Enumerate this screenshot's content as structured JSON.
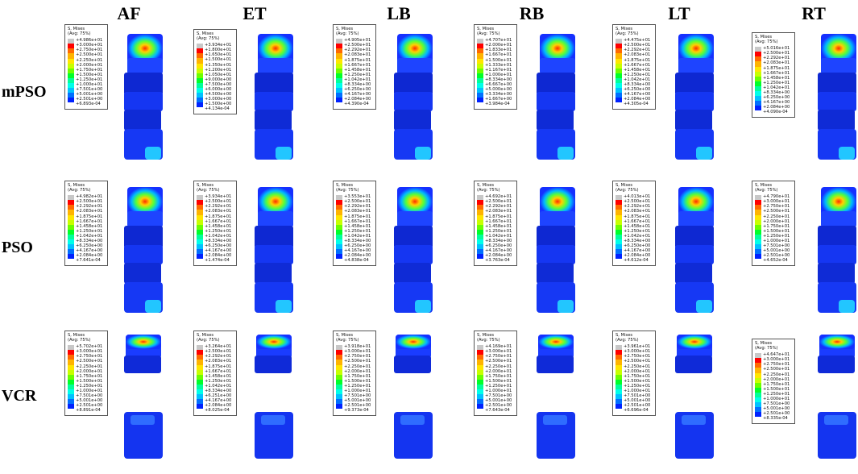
{
  "columns": [
    "AF",
    "ET",
    "LB",
    "RB",
    "LT",
    "RT"
  ],
  "rows": [
    "mPSO",
    "PSO",
    "VCR"
  ],
  "legend_header": [
    "S, Mises",
    "(Avg: 75%)"
  ],
  "colorbar": [
    "#c8c8c8",
    "#ff0000",
    "#ff6a00",
    "#ffb400",
    "#ffe600",
    "#c8ff00",
    "#6cff00",
    "#00ff2a",
    "#00ff9a",
    "#00ffe8",
    "#00c2ff",
    "#0070ff",
    "#0022ff",
    "#0000d0"
  ],
  "legends": [
    [
      "+4.986e+01",
      "+3.000e+01",
      "+2.750e+01",
      "+2.500e+01",
      "+2.250e+01",
      "+2.000e+01",
      "+1.750e+01",
      "+1.500e+01",
      "+1.250e+01",
      "+1.000e+01",
      "+7.501e+00",
      "+5.001e+00",
      "+2.501e+00",
      "+6.893e-04"
    ],
    [
      "+3.934e+01",
      "+1.800e+01",
      "+1.650e+01",
      "+1.500e+01",
      "+1.350e+01",
      "+1.200e+01",
      "+1.050e+01",
      "+9.000e+00",
      "+7.500e+00",
      "+6.000e+00",
      "+4.500e+00",
      "+3.000e+00",
      "+1.500e+00",
      "+4.134e-04"
    ],
    [
      "+4.905e+01",
      "+2.500e+01",
      "+2.292e+01",
      "+2.083e+01",
      "+1.875e+01",
      "+1.667e+01",
      "+1.458e+01",
      "+1.250e+01",
      "+1.042e+01",
      "+8.334e+00",
      "+6.250e+00",
      "+4.167e+00",
      "+2.084e+00",
      "+4.390e-04"
    ],
    [
      "+4.707e+01",
      "+2.000e+01",
      "+1.833e+01",
      "+1.667e+01",
      "+1.500e+01",
      "+1.333e+01",
      "+1.167e+01",
      "+1.000e+01",
      "+8.334e+00",
      "+6.667e+00",
      "+5.000e+00",
      "+3.334e+00",
      "+1.667e+00",
      "+3.984e-04"
    ],
    [
      "+4.475e+01",
      "+2.500e+01",
      "+2.292e+01",
      "+2.083e+01",
      "+1.875e+01",
      "+1.667e+01",
      "+1.458e+01",
      "+1.250e+01",
      "+1.042e+01",
      "+8.334e+00",
      "+6.250e+00",
      "+4.167e+00",
      "+2.084e+00",
      "+4.305e-04"
    ],
    [
      "+5.016e+01",
      "+2.500e+01",
      "+2.292e+01",
      "+2.083e+01",
      "+1.875e+01",
      "+1.667e+01",
      "+1.458e+01",
      "+1.250e+01",
      "+1.042e+01",
      "+8.334e+00",
      "+6.250e+00",
      "+4.167e+00",
      "+2.084e+00",
      "+4.090e-04"
    ],
    [
      "+4.982e+01",
      "+2.500e+01",
      "+2.292e+01",
      "+2.083e+01",
      "+1.875e+01",
      "+1.667e+01",
      "+1.458e+01",
      "+1.250e+01",
      "+1.042e+01",
      "+8.334e+00",
      "+6.250e+00",
      "+4.167e+00",
      "+2.084e+00",
      "+7.641e-04"
    ],
    [
      "+3.934e+01",
      "+2.500e+01",
      "+2.292e+01",
      "+2.083e+01",
      "+1.875e+01",
      "+1.667e+01",
      "+1.458e+01",
      "+1.250e+01",
      "+1.042e+01",
      "+8.334e+00",
      "+6.250e+00",
      "+4.167e+00",
      "+2.084e+00",
      "+1.474e-04"
    ],
    [
      "+3.553e+01",
      "+2.500e+01",
      "+2.292e+01",
      "+2.083e+01",
      "+1.875e+01",
      "+1.667e+01",
      "+1.458e+01",
      "+1.250e+01",
      "+1.042e+01",
      "+8.334e+00",
      "+6.250e+00",
      "+4.167e+00",
      "+2.084e+00",
      "+4.838e-04"
    ],
    [
      "+4.692e+01",
      "+2.500e+01",
      "+2.292e+01",
      "+2.083e+01",
      "+1.875e+01",
      "+1.667e+01",
      "+1.458e+01",
      "+1.250e+01",
      "+1.042e+01",
      "+8.334e+00",
      "+6.250e+00",
      "+4.167e+00",
      "+2.084e+00",
      "+3.763e-04"
    ],
    [
      "+4.013e+01",
      "+2.500e+01",
      "+2.292e+01",
      "+2.083e+01",
      "+1.875e+01",
      "+1.667e+01",
      "+1.458e+01",
      "+1.250e+01",
      "+1.042e+01",
      "+8.334e+00",
      "+6.250e+00",
      "+4.167e+00",
      "+2.084e+00",
      "+4.612e-04"
    ],
    [
      "+4.790e+01",
      "+3.000e+01",
      "+2.750e+01",
      "+2.500e+01",
      "+2.250e+01",
      "+2.000e+01",
      "+1.750e+01",
      "+1.500e+01",
      "+1.250e+01",
      "+1.000e+01",
      "+7.501e+00",
      "+5.001e+00",
      "+2.501e+00",
      "+4.652e-04"
    ],
    [
      "+5.702e+01",
      "+3.000e+01",
      "+2.750e+01",
      "+2.500e+01",
      "+2.250e+01",
      "+2.000e+01",
      "+1.750e+01",
      "+1.500e+01",
      "+1.250e+01",
      "+1.000e+01",
      "+7.501e+00",
      "+5.001e+00",
      "+2.501e+00",
      "+8.891e-04"
    ],
    [
      "+3.264e+01",
      "+2.500e+01",
      "+2.292e+01",
      "+2.083e+01",
      "+1.875e+01",
      "+1.667e+01",
      "+1.458e+01",
      "+1.250e+01",
      "+1.042e+01",
      "+8.334e+00",
      "+6.251e+00",
      "+4.167e+00",
      "+2.084e+00",
      "+8.025e-04"
    ],
    [
      "+3.918e+01",
      "+3.000e+01",
      "+2.750e+01",
      "+2.500e+01",
      "+2.250e+01",
      "+2.000e+01",
      "+1.750e+01",
      "+1.500e+01",
      "+1.250e+01",
      "+1.000e+01",
      "+7.501e+00",
      "+5.001e+00",
      "+2.501e+00",
      "+9.373e-04"
    ],
    [
      "+4.169e+01",
      "+3.000e+01",
      "+2.750e+01",
      "+2.500e+01",
      "+2.250e+01",
      "+2.000e+01",
      "+1.750e+01",
      "+1.500e+01",
      "+1.250e+01",
      "+1.000e+01",
      "+7.501e+00",
      "+5.001e+00",
      "+2.501e+00",
      "+7.643e-04"
    ],
    [
      "+3.961e+01",
      "+3.000e+01",
      "+2.750e+01",
      "+2.500e+01",
      "+2.250e+01",
      "+2.000e+01",
      "+1.750e+01",
      "+1.500e+01",
      "+1.250e+01",
      "+1.000e+01",
      "+7.501e+00",
      "+5.001e+00",
      "+2.501e+00",
      "+6.696e-04"
    ],
    [
      "+4.647e+01",
      "+3.000e+01",
      "+2.750e+01",
      "+2.500e+01",
      "+2.250e+01",
      "+2.000e+01",
      "+1.750e+01",
      "+1.500e+01",
      "+1.250e+01",
      "+1.000e+01",
      "+7.501e+00",
      "+5.001e+00",
      "+2.501e+00",
      "+8.335e-04"
    ]
  ]
}
